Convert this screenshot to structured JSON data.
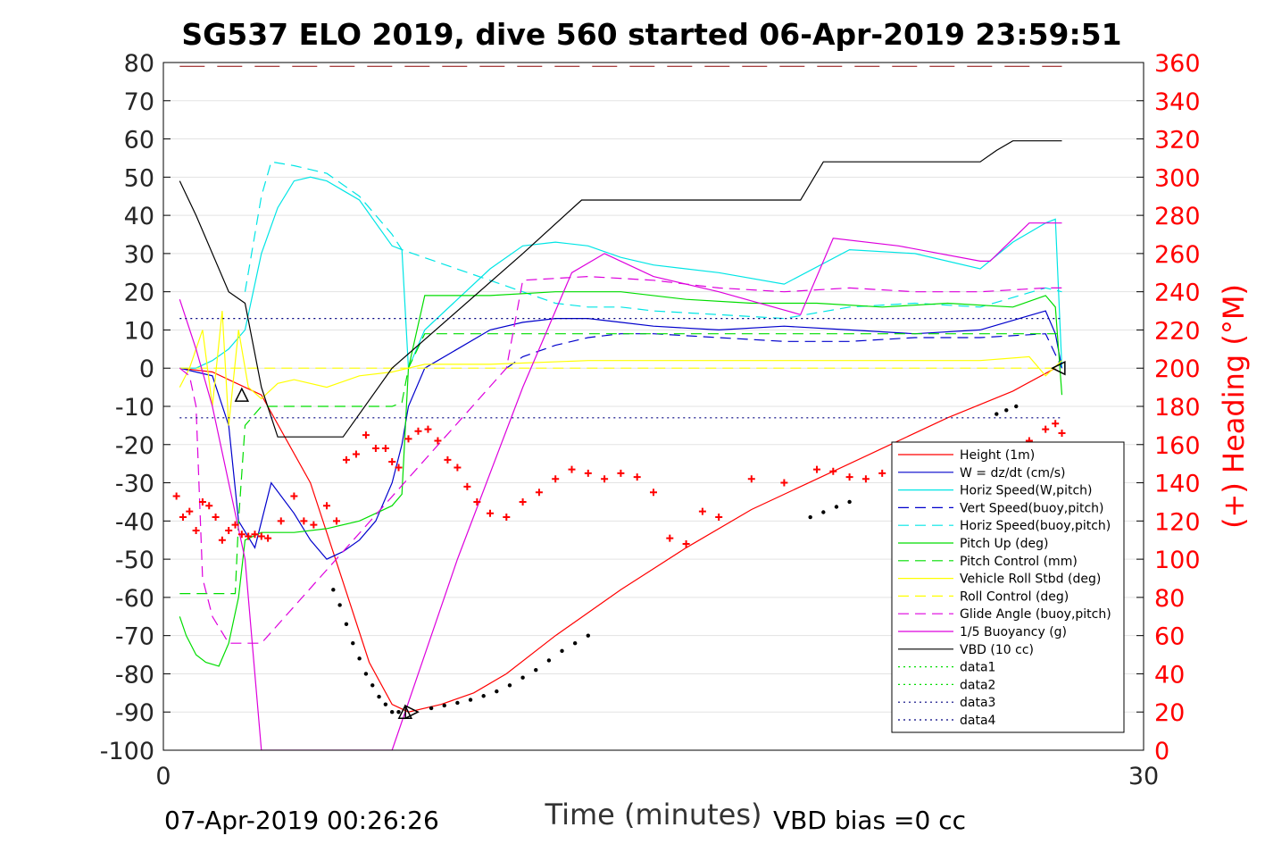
{
  "chart_data": {
    "type": "line",
    "title": "SG537 ELO 2019, dive 560 started 06-Apr-2019 23:59:51",
    "xlabel": "Time (minutes)",
    "ylabel": "",
    "ylabel_right": "(+) Heading (°M)",
    "xlim": [
      0,
      30
    ],
    "ylim": [
      -100,
      80
    ],
    "ylim_right": [
      0,
      360
    ],
    "xticks": [
      "0",
      "30"
    ],
    "yticks": [
      "80",
      "70",
      "60",
      "50",
      "40",
      "30",
      "20",
      "10",
      "0",
      "-10",
      "-20",
      "-30",
      "-40",
      "-50",
      "-60",
      "-70",
      "-80",
      "-90",
      "-100"
    ],
    "yticks_right": [
      "360",
      "340",
      "320",
      "300",
      "280",
      "260",
      "240",
      "220",
      "200",
      "180",
      "160",
      "140",
      "120",
      "100",
      "80",
      "60",
      "40",
      "20",
      "0"
    ],
    "grid": true,
    "legend_position": "bottom-right",
    "footer_left": "07-Apr-2019 00:26:26",
    "footer_right": "VBD bias =0 cc",
    "colors": {
      "height": "#ff0000",
      "w": "#0000cc",
      "horiz_speed": "#00e5e5",
      "pitch": "#00dd00",
      "roll": "#ffff00",
      "glide": "#dd00dd",
      "vbd": "#000000",
      "heading": "#ff0000",
      "ref": "#000080",
      "top_dashed": "#8b0000"
    },
    "series": [
      {
        "name": "Height (1m)",
        "key": "height",
        "style": "solid",
        "color": "#ff0000",
        "x": [
          0.5,
          1.5,
          3.0,
          4.5,
          5.5,
          6.3,
          7.0,
          7.5,
          8.5,
          9.5,
          10.5,
          12.0,
          14.0,
          16.0,
          18.0,
          20.0,
          22.0,
          24.0,
          26.0,
          27.3
        ],
        "y": [
          0,
          -1,
          -7,
          -30,
          -56,
          -77,
          -88,
          -90,
          -88,
          -85,
          -80,
          -70,
          -58,
          -47,
          -37,
          -29,
          -21,
          -13,
          -6,
          0
        ]
      },
      {
        "name": "W = dz/dt (cm/s)",
        "key": "w",
        "style": "solid",
        "color": "#0000cc",
        "x": [
          0.5,
          1.0,
          1.5,
          2.0,
          2.3,
          2.8,
          3.3,
          4.0,
          4.5,
          5.0,
          5.5,
          6.0,
          6.5,
          7.0,
          7.3,
          7.5,
          8.0,
          9.0,
          10.0,
          11.0,
          12.0,
          13.0,
          14.0,
          15.0,
          17.0,
          19.0,
          21.0,
          23.0,
          25.0,
          27.0,
          27.3,
          27.5
        ],
        "y": [
          0,
          -1,
          -2,
          -15,
          -40,
          -47,
          -30,
          -38,
          -45,
          -50,
          -48,
          -45,
          -40,
          -30,
          -20,
          -10,
          0,
          5,
          10,
          12,
          13,
          13,
          12,
          11,
          10,
          11,
          10,
          9,
          10,
          15,
          9,
          0
        ]
      },
      {
        "name": "Horiz Speed(W,pitch)",
        "key": "horiz_speed",
        "style": "solid",
        "color": "#00e5e5",
        "x": [
          0.5,
          1.0,
          1.5,
          2.0,
          2.5,
          3.0,
          3.5,
          4.0,
          4.5,
          5.0,
          6.0,
          6.5,
          7.0,
          7.3,
          7.5,
          8.0,
          10.0,
          11.0,
          12.0,
          13.0,
          14.0,
          15.0,
          17.0,
          19.0,
          21.0,
          23.0,
          25.0,
          26.0,
          27.0,
          27.3,
          27.5
        ],
        "y": [
          0,
          0,
          2,
          5,
          10,
          30,
          42,
          49,
          50,
          49,
          44,
          38,
          32,
          31,
          0,
          10,
          26,
          32,
          33,
          32,
          29,
          27,
          25,
          22,
          31,
          30,
          26,
          33,
          38,
          39,
          0
        ]
      },
      {
        "name": "Vert Speed(buoy,pitch)",
        "key": "vert_speed",
        "style": "dashed",
        "color": "#0000cc",
        "x": [
          10.5,
          11.0,
          12.0,
          13.0,
          14.0,
          15.0,
          17.0,
          19.0,
          21.0,
          23.0,
          25.0,
          27.0,
          27.5
        ],
        "y": [
          0,
          3,
          6,
          8,
          9,
          9,
          8,
          7,
          7,
          8,
          8,
          9,
          0
        ]
      },
      {
        "name": "Horiz Speed(buoy,pitch)",
        "key": "horiz_speed_buoy",
        "style": "dashed",
        "color": "#00e5e5",
        "x": [
          2.5,
          3.0,
          3.3,
          4.0,
          5.0,
          6.0,
          7.0,
          7.3,
          11.0,
          12.0,
          13.0,
          14.0,
          15.0,
          17.0,
          19.0,
          21.0,
          23.0,
          25.0,
          27.0,
          27.5
        ],
        "y": [
          20,
          45,
          54,
          53,
          51,
          45,
          35,
          31,
          20,
          17,
          16,
          16,
          15,
          14,
          13,
          16,
          17,
          16,
          21,
          20
        ]
      },
      {
        "name": "Pitch Up (deg)",
        "key": "pitch",
        "style": "solid",
        "color": "#00dd00",
        "x": [
          0.5,
          0.7,
          1.0,
          1.3,
          1.7,
          2.0,
          2.3,
          2.5,
          3.0,
          4.0,
          5.0,
          6.0,
          6.5,
          7.0,
          7.3,
          7.5,
          8.0,
          10.0,
          12.0,
          14.0,
          16.0,
          18.0,
          20.0,
          22.0,
          24.0,
          26.0,
          27.0,
          27.3,
          27.5
        ],
        "y": [
          -65,
          -70,
          -75,
          -77,
          -78,
          -72,
          -60,
          -45,
          -43,
          -43,
          -42,
          -40,
          -38,
          -36,
          -33,
          0,
          19,
          19,
          20,
          20,
          18,
          17,
          17,
          16,
          17,
          16,
          19,
          16,
          -7
        ]
      },
      {
        "name": "Pitch Control (mm)",
        "key": "pitch_control",
        "style": "dashed",
        "color": "#00dd00",
        "x": [
          0.5,
          2.2,
          2.3,
          2.5,
          3.0,
          3.5,
          5.0,
          7.0,
          7.3,
          7.5,
          8.0,
          27.5
        ],
        "y": [
          -59,
          -59,
          -40,
          -15,
          -10,
          -10,
          -10,
          -10,
          -9,
          0,
          9,
          9
        ]
      },
      {
        "name": "Vehicle Roll Stbd (deg)",
        "key": "roll",
        "style": "solid",
        "color": "#ffff00",
        "x": [
          0.5,
          0.8,
          1.2,
          1.5,
          1.8,
          2.0,
          2.3,
          2.6,
          3.0,
          3.5,
          4.0,
          5.0,
          6.0,
          7.0,
          7.5,
          8.0,
          10.0,
          13.0,
          16.0,
          19.0,
          22.0,
          25.0,
          26.5,
          27.0,
          27.5
        ],
        "y": [
          -5,
          0,
          10,
          -10,
          15,
          -15,
          10,
          -5,
          -8,
          -4,
          -3,
          -5,
          -2,
          -1,
          0,
          1,
          1,
          2,
          2,
          2,
          2,
          2,
          3,
          -2,
          2
        ]
      },
      {
        "name": "Roll Control (deg)",
        "key": "roll_control",
        "style": "dashed",
        "color": "#ffff00",
        "x": [
          0.5,
          27.5
        ],
        "y": [
          0,
          0
        ]
      },
      {
        "name": "Glide Angle (buoy,pitch)",
        "key": "glide_angle",
        "style": "dashed",
        "color": "#dd00dd",
        "x": [
          0.5,
          0.8,
          1.0,
          1.2,
          1.5,
          2.0,
          3.0,
          10.5,
          11.0,
          13.0,
          15.0,
          17.0,
          19.0,
          21.0,
          23.0,
          25.0,
          27.0,
          27.5
        ],
        "y": [
          0,
          -2,
          -10,
          -55,
          -65,
          -72,
          -72,
          0,
          23,
          24,
          23,
          21,
          20,
          21,
          20,
          20,
          21,
          21
        ]
      },
      {
        "name": "1/5 Buoyancy (g)",
        "key": "buoyancy",
        "style": "solid",
        "color": "#dd00dd",
        "x": [
          0.5,
          1.0,
          1.5,
          2.0,
          2.5,
          3.0,
          7.0,
          9.0,
          11.0,
          12.5,
          13.5,
          15.0,
          17.0,
          19.5,
          20.5,
          22.5,
          25.0,
          25.3,
          26.5,
          27.0,
          27.5
        ],
        "y": [
          18,
          5,
          -10,
          -30,
          -50,
          -100,
          -100,
          -50,
          -5,
          25,
          30,
          24,
          20,
          14,
          34,
          32,
          28,
          28,
          38,
          38,
          38
        ]
      },
      {
        "name": "VBD (10 cc)",
        "key": "vbd",
        "style": "solid",
        "color": "#000000",
        "x": [
          0.5,
          1.0,
          2.0,
          2.5,
          3.0,
          3.5,
          5.0,
          5.5,
          7.0,
          11.0,
          12.8,
          16.0,
          19.5,
          20.2,
          25.0,
          25.5,
          26.0,
          27.5
        ],
        "y": [
          49,
          40,
          20,
          17,
          -5,
          -18,
          -18,
          -18,
          0,
          30,
          44,
          44,
          44,
          54,
          54,
          57,
          59.5,
          59.5
        ]
      },
      {
        "name": "data1",
        "key": "data1",
        "style": "dotted",
        "color": "#00dd00",
        "x": [],
        "y": []
      },
      {
        "name": "data2",
        "key": "data2",
        "style": "dotted",
        "color": "#00dd00",
        "x": [],
        "y": []
      },
      {
        "name": "data3",
        "key": "data3",
        "style": "dotted",
        "color": "#000080",
        "x": [
          0.5,
          27.5
        ],
        "y": [
          13,
          13
        ]
      },
      {
        "name": "data4",
        "key": "data4",
        "style": "dotted",
        "color": "#000080",
        "x": [
          0.5,
          27.5
        ],
        "y": [
          -13,
          -13
        ]
      }
    ],
    "heading": {
      "x": [
        0.4,
        0.6,
        0.8,
        1.0,
        1.2,
        1.4,
        1.6,
        1.8,
        2.0,
        2.2,
        2.4,
        2.6,
        2.8,
        3.0,
        3.2,
        3.6,
        4.0,
        4.3,
        4.6,
        5.0,
        5.3,
        5.6,
        5.9,
        6.2,
        6.5,
        6.8,
        7.0,
        7.2,
        7.5,
        7.8,
        8.1,
        8.4,
        8.7,
        9.0,
        9.3,
        9.6,
        10.0,
        10.5,
        11.0,
        11.5,
        12.0,
        12.5,
        13.0,
        13.5,
        14.0,
        14.5,
        15.0,
        15.5,
        16.0,
        16.5,
        17.0,
        18.0,
        19.0,
        20.0,
        20.5,
        21.0,
        21.5,
        22.0,
        22.5,
        23.0,
        23.5,
        24.0,
        24.5,
        25.0,
        25.5,
        26.0,
        26.5,
        27.0,
        27.3,
        27.5
      ],
      "y": [
        133,
        122,
        125,
        115,
        130,
        128,
        122,
        110,
        115,
        118,
        113,
        112,
        113,
        112,
        111,
        120,
        133,
        120,
        118,
        128,
        120,
        152,
        155,
        165,
        158,
        158,
        151,
        148,
        163,
        167,
        168,
        162,
        152,
        148,
        138,
        130,
        124,
        122,
        130,
        135,
        142,
        147,
        145,
        142,
        145,
        143,
        135,
        111,
        108,
        125,
        122,
        142,
        140,
        147,
        146,
        143,
        142,
        145,
        148,
        152,
        153,
        146,
        147,
        148,
        153,
        158,
        162,
        168,
        171,
        166
      ]
    },
    "markers": [
      {
        "x": 2.4,
        "y": -7,
        "shape": "triangle-up"
      },
      {
        "x": 7.4,
        "y": -90,
        "shape": "triangle-up"
      },
      {
        "x": 7.6,
        "y": -90,
        "shape": "triangle-right"
      },
      {
        "x": 27.4,
        "y": 0,
        "shape": "triangle-left"
      }
    ],
    "dots": {
      "x": [
        5.2,
        5.4,
        5.6,
        5.8,
        6.0,
        6.2,
        6.4,
        6.6,
        6.8,
        7.0,
        7.2,
        8.2,
        8.6,
        9.0,
        9.4,
        9.8,
        10.2,
        10.6,
        11.0,
        11.4,
        11.8,
        12.2,
        12.6,
        13.0,
        19.8,
        20.2,
        20.6,
        21.0,
        25.5,
        25.8,
        26.1
      ],
      "y": [
        -58,
        -62,
        -67,
        -72,
        -76,
        -80,
        -83,
        -86,
        -88,
        -90,
        -90,
        -89,
        -88.3,
        -87.6,
        -86.8,
        -85.8,
        -84.6,
        -83,
        -81,
        -79,
        -76.5,
        -74,
        -72,
        -70,
        -39,
        -37.7,
        -36.3,
        -35,
        -12,
        -11,
        -10
      ]
    }
  }
}
